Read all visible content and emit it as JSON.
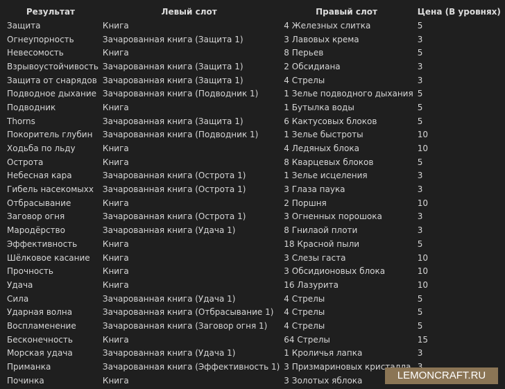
{
  "headers": [
    "Результат",
    "Левый слот",
    "Правый слот",
    "Цена (В уровнях)"
  ],
  "rows": [
    [
      "Защита",
      "Книга",
      "4 Железных слитка",
      "5"
    ],
    [
      "Огнеупорность",
      "Зачарованная книга (Защита 1)",
      "3 Лавовых крема",
      "3"
    ],
    [
      "Невесомость",
      "Книга",
      "8 Перьев",
      "5"
    ],
    [
      "Взрывоустойчивость",
      "Зачарованная книга (Защита 1)",
      "2 Обсидиана",
      "3"
    ],
    [
      "Защита от снарядов",
      "Зачарованная книга (Защита 1)",
      "4 Стрелы",
      "3"
    ],
    [
      "Подводное дыхание",
      "Зачарованная книга (Подводник 1)",
      "1 Зелье подводного дыхания",
      "5"
    ],
    [
      "Подводник",
      "Книга",
      "1 Бутылка воды",
      "5"
    ],
    [
      "Thorns",
      "Зачарованная книга (Защита 1)",
      "6 Кактусовых блоков",
      "5"
    ],
    [
      "Покоритель глубин",
      "Зачарованная книга (Подводник 1)",
      "1 Зелье быстроты",
      "10"
    ],
    [
      "Ходьба по льду",
      "Книга",
      "4 Ледяных блока",
      "10"
    ],
    [
      "Острота",
      "Книга",
      "8 Кварцевых блоков",
      "5"
    ],
    [
      "Небесная кара",
      "Зачарованная книга (Острота 1)",
      "1 Зелье исцеления",
      "3"
    ],
    [
      "Гибель насекомыхх",
      "Зачарованная книга (Острота 1)",
      "3 Глаза паука",
      "3"
    ],
    [
      "Отбрасывание",
      "Книга",
      "2 Поршня",
      "10"
    ],
    [
      "Заговор огня",
      "Зачарованная книга (Острота 1)",
      "3 Огненных порошока",
      "3"
    ],
    [
      "Мародёрство",
      "Зачарованная книга (Удача 1)",
      "8 Гнилаой плоти",
      "3"
    ],
    [
      "Эффективность",
      "Книга",
      "18 Красной пыли",
      "5"
    ],
    [
      "Шёлковое касание",
      "Книга",
      "3 Слезы гаста",
      "10"
    ],
    [
      "Прочность",
      "Книга",
      "3 Обсидионовых блока",
      "10"
    ],
    [
      "Удача",
      "Книга",
      "16 Лазурита",
      "10"
    ],
    [
      "Сила",
      "Зачарованная книга (Удача 1)",
      "4 Стрелы",
      "5"
    ],
    [
      "Ударная волна",
      "Зачарованная книга (Отбрасывание 1)",
      "4 Стрелы",
      "5"
    ],
    [
      "Воспламенение",
      "Зачарованная книга (Заговор огня 1)",
      "4 Стрелы",
      "5"
    ],
    [
      "Бесконечность",
      "Книга",
      "64 Стрелы",
      "15"
    ],
    [
      "Морская удача",
      "Зачарованная книга (Удача 1)",
      "1 Кроличья лапка",
      "3"
    ],
    [
      "Приманка",
      "Зачарованная книга (Эффективность 1)",
      "3 Призмариновых кристалла",
      "3"
    ],
    [
      "Починка",
      "Книга",
      "3 Золотых яблока",
      ""
    ]
  ],
  "watermark": "LEMONCRAFT.RU",
  "colors": {
    "background": "#1f1f1f",
    "text": "#d6d6d6",
    "watermark_bg": "#8b7555"
  }
}
